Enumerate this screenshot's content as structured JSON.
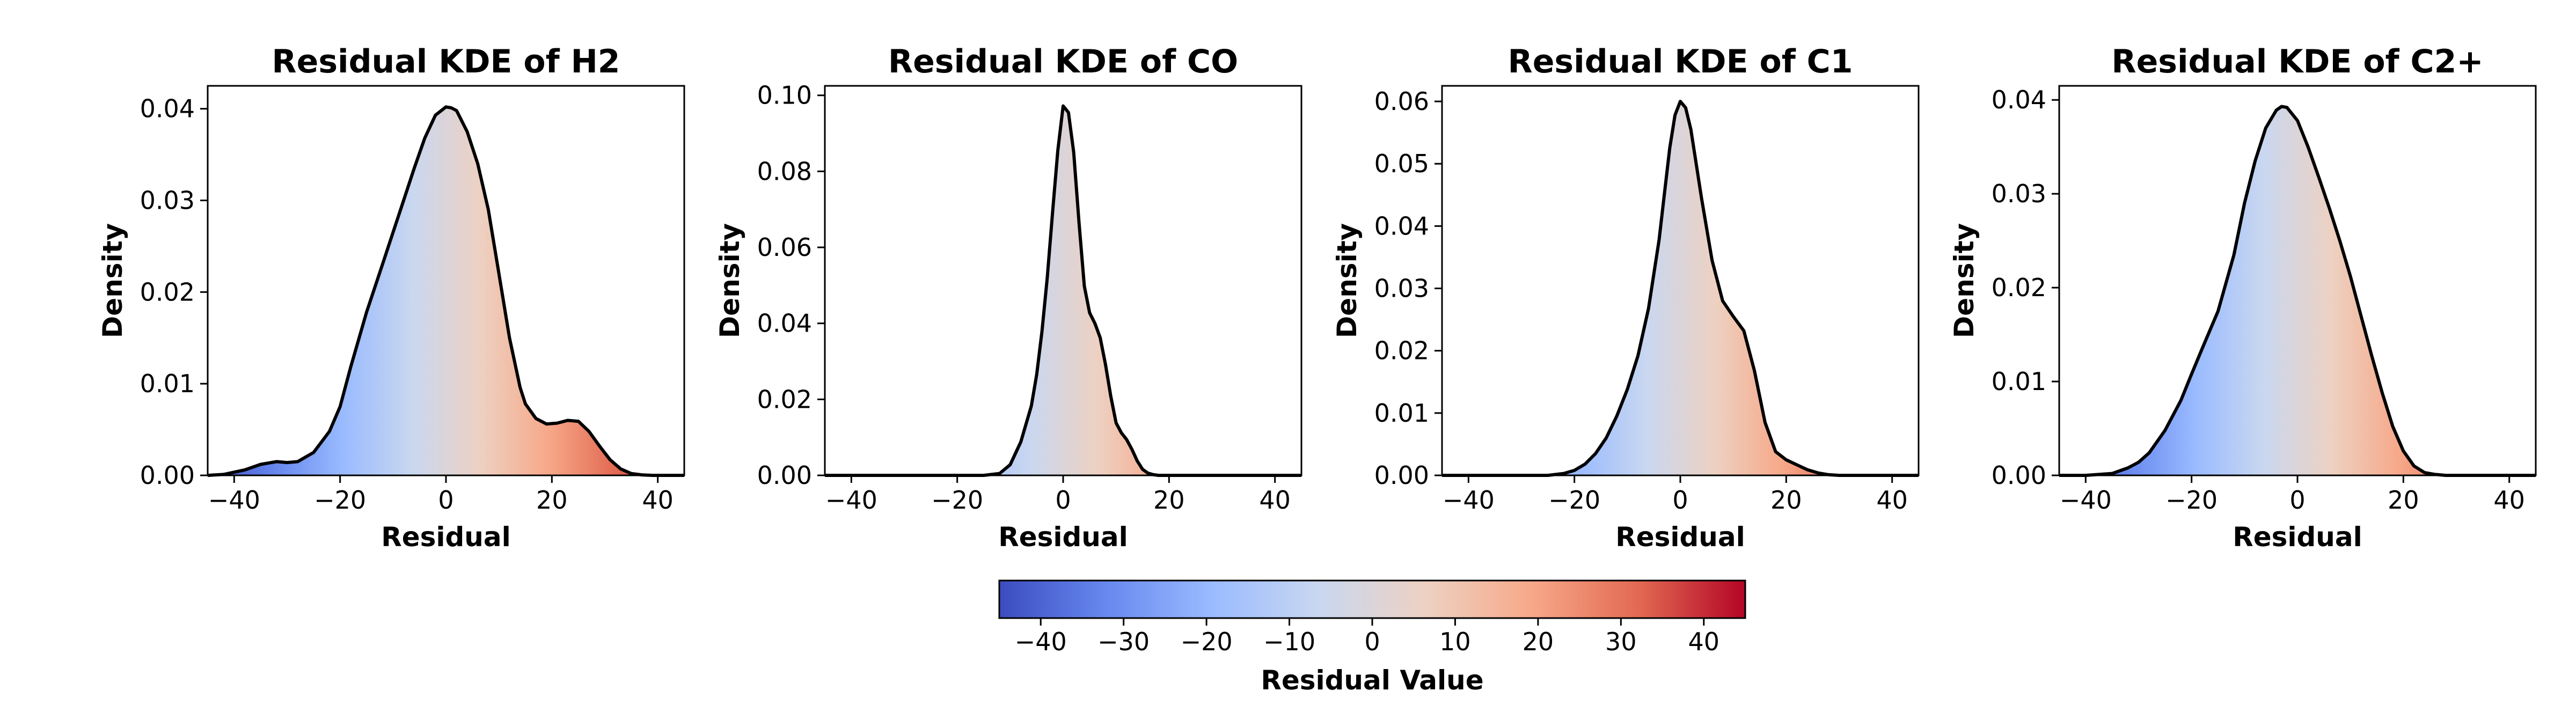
{
  "chart_data": [
    {
      "type": "area",
      "title": "Residual KDE of H2",
      "xlabel": "Residual",
      "ylabel": "Density",
      "xlim": [
        -45,
        45
      ],
      "ylim": [
        0,
        0.0425
      ],
      "xticks": [
        -40,
        -20,
        0,
        20,
        40
      ],
      "yticks": [
        0.0,
        0.01,
        0.02,
        0.03,
        0.04
      ],
      "ytick_labels": [
        "0.00",
        "0.01",
        "0.02",
        "0.03",
        "0.04"
      ],
      "fill": "colormap coolwarm by residual value",
      "series": [
        {
          "x": [
            -45,
            -42,
            -38,
            -35,
            -32,
            -30,
            -28,
            -25,
            -22,
            -20,
            -18,
            -15,
            -12,
            -10,
            -8,
            -6,
            -4,
            -2,
            0,
            1,
            2,
            4,
            6,
            8,
            10,
            12,
            14,
            15,
            17,
            19,
            21,
            23,
            25,
            27,
            29,
            31,
            33,
            35,
            37,
            39,
            41,
            43,
            45
          ],
          "y": [
            0,
            0.0001,
            0.0006,
            0.0012,
            0.0015,
            0.0014,
            0.0015,
            0.0025,
            0.0048,
            0.0075,
            0.0118,
            0.0178,
            0.023,
            0.0265,
            0.03,
            0.0335,
            0.0368,
            0.0393,
            0.0402,
            0.0401,
            0.0398,
            0.0375,
            0.034,
            0.029,
            0.022,
            0.015,
            0.0096,
            0.0078,
            0.0062,
            0.0056,
            0.0057,
            0.006,
            0.0059,
            0.0048,
            0.0032,
            0.0017,
            0.0007,
            0.0002,
            5e-05,
            0,
            0,
            0,
            0
          ]
        }
      ]
    },
    {
      "type": "area",
      "title": "Residual KDE of CO",
      "xlabel": "Residual",
      "ylabel": "Density",
      "xlim": [
        -45,
        45
      ],
      "ylim": [
        0,
        0.1025
      ],
      "xticks": [
        -40,
        -20,
        0,
        20,
        40
      ],
      "yticks": [
        0.0,
        0.02,
        0.04,
        0.06,
        0.08,
        0.1
      ],
      "ytick_labels": [
        "0.00",
        "0.02",
        "0.04",
        "0.06",
        "0.08",
        "0.10"
      ],
      "fill": "colormap coolwarm by residual value",
      "series": [
        {
          "x": [
            -45,
            -20,
            -15,
            -12,
            -10,
            -8,
            -6,
            -5,
            -4,
            -3,
            -2,
            -1,
            0,
            1,
            2,
            3,
            4,
            5,
            6,
            7,
            8,
            9,
            10,
            11,
            12,
            13,
            14,
            15,
            16,
            17,
            18,
            20,
            25,
            45
          ],
          "y": [
            0,
            0,
            0,
            0.0005,
            0.0028,
            0.0088,
            0.0183,
            0.0265,
            0.0378,
            0.052,
            0.0692,
            0.0855,
            0.0972,
            0.0955,
            0.085,
            0.0665,
            0.0498,
            0.0428,
            0.04,
            0.0362,
            0.0292,
            0.0208,
            0.0138,
            0.0112,
            0.0094,
            0.0068,
            0.0038,
            0.0016,
            0.0006,
            0.0002,
            0,
            0,
            0,
            0
          ]
        }
      ]
    },
    {
      "type": "area",
      "title": "Residual KDE of C1",
      "xlabel": "Residual",
      "ylabel": "Density",
      "xlim": [
        -45,
        45
      ],
      "ylim": [
        0,
        0.0625
      ],
      "xticks": [
        -40,
        -20,
        0,
        20,
        40
      ],
      "yticks": [
        0.0,
        0.01,
        0.02,
        0.03,
        0.04,
        0.05,
        0.06
      ],
      "ytick_labels": [
        "0.00",
        "0.01",
        "0.02",
        "0.03",
        "0.04",
        "0.05",
        "0.06"
      ],
      "fill": "colormap coolwarm by residual value",
      "series": [
        {
          "x": [
            -45,
            -25,
            -22,
            -20,
            -18,
            -16,
            -14,
            -12,
            -10,
            -8,
            -6,
            -4,
            -3,
            -2,
            -1,
            0,
            1,
            2,
            3,
            4,
            6,
            8,
            10,
            12,
            14,
            16,
            18,
            20,
            22,
            24,
            26,
            28,
            30,
            32,
            45
          ],
          "y": [
            0,
            0,
            0.0003,
            0.0008,
            0.0018,
            0.0035,
            0.006,
            0.0095,
            0.0138,
            0.0192,
            0.0268,
            0.0378,
            0.0452,
            0.0525,
            0.0578,
            0.06,
            0.059,
            0.0555,
            0.05,
            0.0445,
            0.0345,
            0.028,
            0.0255,
            0.0232,
            0.0168,
            0.0085,
            0.0038,
            0.0025,
            0.0017,
            0.0009,
            0.0004,
            0.0001,
            0,
            0,
            0
          ]
        }
      ]
    },
    {
      "type": "area",
      "title": "Residual KDE of C2+",
      "xlabel": "Residual",
      "ylabel": "Density",
      "xlim": [
        -45,
        45
      ],
      "ylim": [
        0,
        0.0415
      ],
      "xticks": [
        -40,
        -20,
        0,
        20,
        40
      ],
      "yticks": [
        0.0,
        0.01,
        0.02,
        0.03,
        0.04
      ],
      "ytick_labels": [
        "0.00",
        "0.01",
        "0.02",
        "0.03",
        "0.04"
      ],
      "fill": "colormap coolwarm by residual value",
      "series": [
        {
          "x": [
            -45,
            -40,
            -35,
            -32,
            -30,
            -28,
            -25,
            -22,
            -20,
            -18,
            -15,
            -12,
            -10,
            -8,
            -6,
            -4,
            -3,
            -2,
            0,
            2,
            4,
            6,
            8,
            10,
            12,
            14,
            16,
            18,
            20,
            22,
            24,
            26,
            28,
            30,
            32,
            35,
            45
          ],
          "y": [
            0,
            0,
            0.0002,
            0.0008,
            0.0014,
            0.0024,
            0.0048,
            0.008,
            0.0108,
            0.0135,
            0.0175,
            0.0235,
            0.029,
            0.0335,
            0.037,
            0.0389,
            0.0393,
            0.0392,
            0.0378,
            0.035,
            0.0318,
            0.0285,
            0.025,
            0.0212,
            0.017,
            0.0128,
            0.0088,
            0.0052,
            0.0026,
            0.001,
            0.0003,
            0.0001,
            0,
            0,
            0,
            0,
            0
          ]
        }
      ]
    }
  ],
  "colorbar": {
    "label": "Residual Value",
    "range": [
      -45,
      45
    ],
    "ticks": [
      -40,
      -30,
      -20,
      -10,
      0,
      10,
      20,
      30,
      40
    ],
    "tick_labels": [
      "−40",
      "−30",
      "−20",
      "−10",
      "0",
      "10",
      "20",
      "30",
      "40"
    ],
    "colormap": "coolwarm",
    "stops": [
      "#3b4cc0",
      "#6788ee",
      "#9abbff",
      "#c9d7f0",
      "#edd1c2",
      "#f7a889",
      "#e26952",
      "#b40426"
    ]
  }
}
